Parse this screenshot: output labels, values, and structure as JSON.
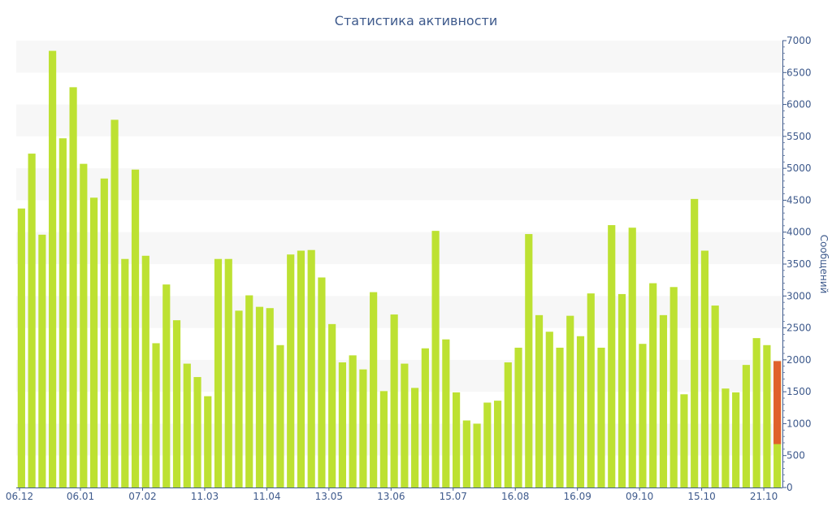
{
  "chart_data": {
    "type": "bar",
    "title": "Статистика активности",
    "xlabel": "",
    "ylabel": "Сообщений",
    "ylim": [
      0,
      7000
    ],
    "yticks": [
      0,
      500,
      1000,
      1500,
      2000,
      2500,
      3000,
      3500,
      4000,
      4500,
      5000,
      5500,
      6000,
      6500,
      7000
    ],
    "x_tick_labels": [
      {
        "index": 0,
        "label": "06.12"
      },
      {
        "index": 6,
        "label": "06.01"
      },
      {
        "index": 12,
        "label": "07.02"
      },
      {
        "index": 18,
        "label": "11.03"
      },
      {
        "index": 24,
        "label": "11.04"
      },
      {
        "index": 30,
        "label": "13.05"
      },
      {
        "index": 36,
        "label": "13.06"
      },
      {
        "index": 42,
        "label": "15.07"
      },
      {
        "index": 48,
        "label": "16.08"
      },
      {
        "index": 54,
        "label": "16.09"
      },
      {
        "index": 60,
        "label": "09.10"
      },
      {
        "index": 66,
        "label": "15.10"
      },
      {
        "index": 72,
        "label": "21.10"
      }
    ],
    "values": [
      4370,
      5230,
      3960,
      6840,
      5470,
      6270,
      5070,
      4540,
      4840,
      5760,
      3580,
      4980,
      3630,
      2260,
      3180,
      2620,
      1940,
      1730,
      1430,
      3580,
      3580,
      2770,
      3010,
      2830,
      2810,
      2230,
      3650,
      3710,
      3720,
      3290,
      2560,
      1960,
      2070,
      1850,
      3060,
      1510,
      2710,
      1940,
      1560,
      2180,
      4020,
      2320,
      1490,
      1050,
      1000,
      1330,
      1360,
      1960,
      2190,
      3970,
      2700,
      2440,
      2190,
      2690,
      2370,
      3040,
      2190,
      4110,
      3030,
      4070,
      2250,
      3200,
      2700,
      3140,
      1460,
      4520,
      3710,
      2850,
      1550,
      1490,
      1920,
      2340,
      2230,
      1980
    ],
    "highlight_last": {
      "index": 73,
      "total": 1980,
      "lower": 680
    },
    "colors": {
      "bar": "#bde132",
      "highlight": "#e0602c",
      "band": "#f7f7f7",
      "axis": "#3e5a8c",
      "text": "#3e5a8c"
    },
    "grid": "horizontal-bands",
    "y_axis_position": "right"
  }
}
